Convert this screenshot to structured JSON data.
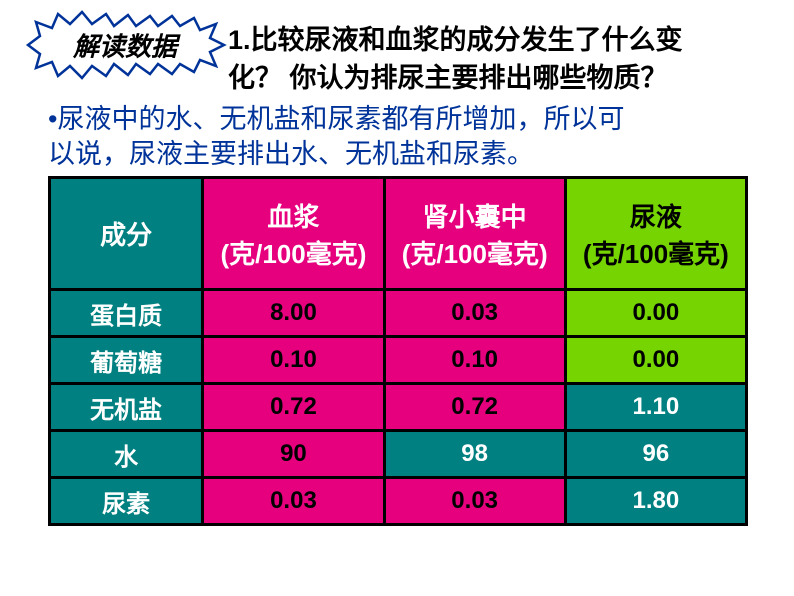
{
  "starburst": {
    "label": "解读数据",
    "stroke": "#003399"
  },
  "question": {
    "line1": "1.比较尿液和血浆的成分发生了什么变",
    "line2": "化？ 你认为排尿主要排出哪些物质？"
  },
  "answer": {
    "bullet": "•",
    "line1": "尿液中的水、无机盐和尿素都有所增加，所以可",
    "line2": "以说，尿液主要排出水、无机盐和尿素。"
  },
  "table": {
    "headers": {
      "component": "成分",
      "plasma_l1": "血浆",
      "plasma_l2": "(克/100毫克)",
      "capsule_l1": "肾小囊中",
      "capsule_l2": "(克/100毫克)",
      "urine_l1": "尿液",
      "urine_l2": "(克/100毫克)"
    },
    "rows": [
      {
        "label": "蛋白质",
        "plasma": "8.00",
        "capsule": "0.03",
        "urine": "0.00",
        "plasma_class": "cell-pink",
        "capsule_class": "cell-pink",
        "urine_class": "cell-green"
      },
      {
        "label": "葡萄糖",
        "plasma": "0.10",
        "capsule": "0.10",
        "urine": "0.00",
        "plasma_class": "cell-pink",
        "capsule_class": "cell-pink",
        "urine_class": "cell-green"
      },
      {
        "label": "无机盐",
        "plasma": "0.72",
        "capsule": "0.72",
        "urine": "1.10",
        "plasma_class": "cell-pink",
        "capsule_class": "cell-pink",
        "urine_class": "cell-teal"
      },
      {
        "label": "水",
        "plasma": "90",
        "capsule": "98",
        "urine": "96",
        "plasma_class": "cell-pink",
        "capsule_class": "cell-teal",
        "urine_class": "cell-teal"
      },
      {
        "label": "尿素",
        "plasma": "0.03",
        "capsule": "0.03",
        "urine": "1.80",
        "plasma_class": "cell-pink",
        "capsule_class": "cell-pink",
        "urine_class": "cell-teal"
      }
    ],
    "col_widths": [
      "22%",
      "26%",
      "26%",
      "26%"
    ]
  },
  "colors": {
    "teal": "#008080",
    "pink": "#e6007e",
    "green": "#76d400",
    "blue": "#003399"
  }
}
